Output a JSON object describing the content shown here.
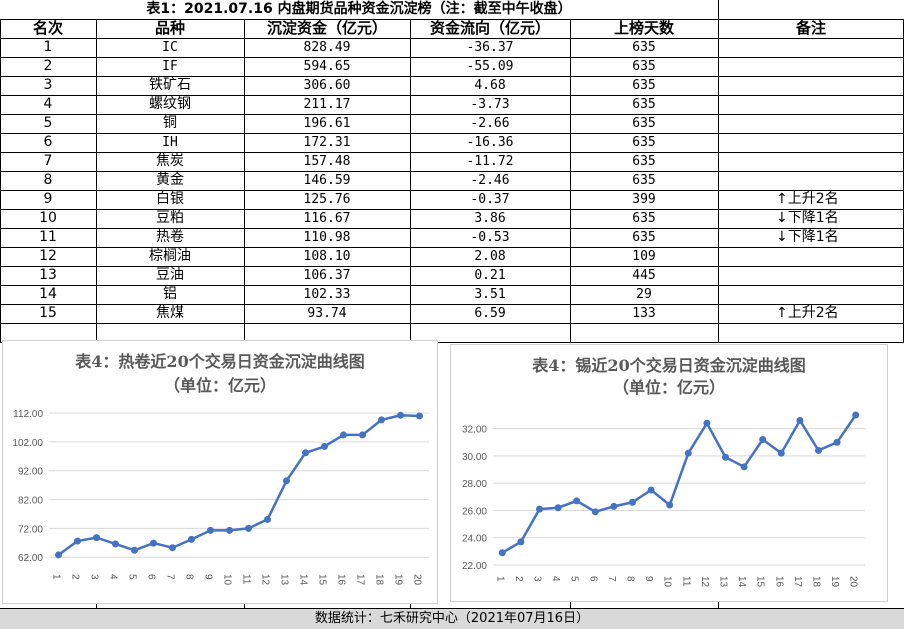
{
  "table": {
    "title": "表1：2021.07.16 内盘期货品种资金沉淀榜（注：截至中午收盘）",
    "headers": [
      "名次",
      "品种",
      "沉淀资金（亿元）",
      "资金流向（亿元）",
      "上榜天数",
      "备注"
    ],
    "rows": [
      {
        "rank": "1",
        "name": "IC",
        "amount": "828.49",
        "flow": "-36.37",
        "days": "635",
        "note": "",
        "arrow": ""
      },
      {
        "rank": "2",
        "name": "IF",
        "amount": "594.65",
        "flow": "-55.09",
        "days": "635",
        "note": "",
        "arrow": ""
      },
      {
        "rank": "3",
        "name": "铁矿石",
        "amount": "306.60",
        "flow": "4.68",
        "days": "635",
        "note": "",
        "arrow": ""
      },
      {
        "rank": "4",
        "name": "螺纹钢",
        "amount": "211.17",
        "flow": "-3.73",
        "days": "635",
        "note": "",
        "arrow": ""
      },
      {
        "rank": "5",
        "name": "铜",
        "amount": "196.61",
        "flow": "-2.66",
        "days": "635",
        "note": "",
        "arrow": ""
      },
      {
        "rank": "6",
        "name": "IH",
        "amount": "172.31",
        "flow": "-16.36",
        "days": "635",
        "note": "",
        "arrow": ""
      },
      {
        "rank": "7",
        "name": "焦炭",
        "amount": "157.48",
        "flow": "-11.72",
        "days": "635",
        "note": "",
        "arrow": ""
      },
      {
        "rank": "8",
        "name": "黄金",
        "amount": "146.59",
        "flow": "-2.46",
        "days": "635",
        "note": "",
        "arrow": ""
      },
      {
        "rank": "9",
        "name": "白银",
        "amount": "125.76",
        "flow": "-0.37",
        "days": "399",
        "note": "上升2名",
        "arrow": "↑"
      },
      {
        "rank": "10",
        "name": "豆粕",
        "amount": "116.67",
        "flow": "3.86",
        "days": "635",
        "note": "下降1名",
        "arrow": "↓"
      },
      {
        "rank": "11",
        "name": "热卷",
        "amount": "110.98",
        "flow": "-0.53",
        "days": "635",
        "note": "下降1名",
        "arrow": "↓"
      },
      {
        "rank": "12",
        "name": "棕榈油",
        "amount": "108.10",
        "flow": "2.08",
        "days": "109",
        "note": "",
        "arrow": ""
      },
      {
        "rank": "13",
        "name": "豆油",
        "amount": "106.37",
        "flow": "0.21",
        "days": "445",
        "note": "",
        "arrow": ""
      },
      {
        "rank": "14",
        "name": "铝",
        "amount": "102.33",
        "flow": "3.51",
        "days": "29",
        "note": "",
        "arrow": ""
      },
      {
        "rank": "15",
        "name": "焦煤",
        "amount": "93.74",
        "flow": "6.59",
        "days": "133",
        "note": "上升2名",
        "arrow": "↑"
      }
    ]
  },
  "footer": "数据统计：七禾研究中心（2021年07月16日）",
  "colors": {
    "line": "#4472c4",
    "grid": "#d9d9d9",
    "title": "#595959",
    "footer_bg": "#d9d9d9"
  },
  "chart_data": [
    {
      "type": "line",
      "title": "表4：热卷近20个交易日资金沉淀曲线图",
      "subtitle": "（单位：亿元）",
      "x": [
        "1",
        "2",
        "3",
        "4",
        "5",
        "6",
        "7",
        "8",
        "9",
        "10",
        "11",
        "12",
        "13",
        "14",
        "15",
        "16",
        "17",
        "18",
        "19",
        "20"
      ],
      "values": [
        62.8,
        67.6,
        68.8,
        66.6,
        64.4,
        66.9,
        65.3,
        68.2,
        71.3,
        71.3,
        72.0,
        75.1,
        88.5,
        98.2,
        100.4,
        104.4,
        104.4,
        109.6,
        111.2,
        110.98
      ],
      "ylim": [
        60,
        112
      ],
      "yticks": [
        "62.00",
        "72.00",
        "82.00",
        "92.00",
        "102.00",
        "112.00"
      ],
      "ytick_values": [
        62,
        72,
        82,
        92,
        102,
        112
      ],
      "grid": true
    },
    {
      "type": "line",
      "title": "表4：锡近20个交易日资金沉淀曲线图",
      "subtitle": "（单位：亿元）",
      "x": [
        "1",
        "2",
        "3",
        "4",
        "5",
        "6",
        "7",
        "8",
        "9",
        "10",
        "11",
        "12",
        "13",
        "14",
        "15",
        "16",
        "17",
        "18",
        "19",
        "20"
      ],
      "values": [
        22.9,
        23.7,
        26.1,
        26.2,
        26.7,
        25.9,
        26.3,
        26.6,
        27.5,
        26.4,
        30.2,
        32.4,
        29.9,
        29.2,
        31.2,
        30.2,
        32.6,
        30.4,
        31.0,
        33.0
      ],
      "ylim": [
        22,
        33
      ],
      "yticks": [
        "22.00",
        "24.00",
        "26.00",
        "28.00",
        "30.00",
        "32.00"
      ],
      "ytick_values": [
        22,
        24,
        26,
        28,
        30,
        32
      ],
      "grid": true
    }
  ]
}
